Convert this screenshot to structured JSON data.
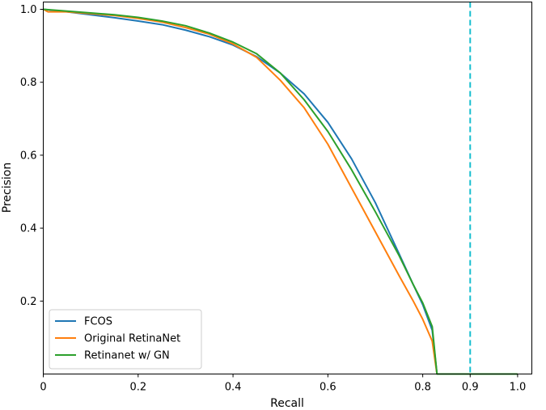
{
  "chart_data": {
    "type": "line",
    "xlabel": "Recall",
    "ylabel": "Precision",
    "xlim": [
      0.0,
      1.03
    ],
    "ylim": [
      0.0,
      1.02
    ],
    "grid": false,
    "legend_position": "bottom-left",
    "x_ticks": [
      {
        "value": 0.0,
        "label": "0"
      },
      {
        "value": 0.2,
        "label": "0.2"
      },
      {
        "value": 0.4,
        "label": "0.4"
      },
      {
        "value": 0.6,
        "label": "0.6"
      },
      {
        "value": 0.8,
        "label": "0.8"
      },
      {
        "value": 0.9,
        "label": "0.9"
      },
      {
        "value": 1.0,
        "label": "1.0"
      }
    ],
    "y_ticks": [
      {
        "value": 0.2,
        "label": "0.2"
      },
      {
        "value": 0.4,
        "label": "0.4"
      },
      {
        "value": 0.6,
        "label": "0.6"
      },
      {
        "value": 0.8,
        "label": "0.8"
      },
      {
        "value": 1.0,
        "label": "1.0"
      }
    ],
    "reference_line": {
      "x": 0.9,
      "color": "#17becf",
      "style": "dashed"
    },
    "series": [
      {
        "name": "FCOS",
        "color": "#1f77b4",
        "x": [
          0,
          0.05,
          0.1,
          0.15,
          0.2,
          0.25,
          0.3,
          0.35,
          0.4,
          0.45,
          0.5,
          0.55,
          0.6,
          0.65,
          0.7,
          0.75,
          0.78,
          0.8,
          0.82,
          0.83,
          0.9,
          1.0
        ],
        "y": [
          1.0,
          0.993,
          0.985,
          0.977,
          0.968,
          0.958,
          0.943,
          0.925,
          0.902,
          0.87,
          0.825,
          0.768,
          0.69,
          0.59,
          0.47,
          0.33,
          0.245,
          0.19,
          0.12,
          0.0,
          0.0,
          0.0
        ]
      },
      {
        "name": "Original RetinaNet",
        "color": "#ff7f0e",
        "x": [
          0,
          0.01,
          0.05,
          0.1,
          0.15,
          0.2,
          0.25,
          0.3,
          0.35,
          0.4,
          0.45,
          0.5,
          0.55,
          0.6,
          0.65,
          0.7,
          0.75,
          0.78,
          0.8,
          0.82,
          0.83,
          0.9,
          1.0
        ],
        "y": [
          1.0,
          0.993,
          0.993,
          0.988,
          0.983,
          0.975,
          0.965,
          0.95,
          0.932,
          0.905,
          0.868,
          0.805,
          0.73,
          0.63,
          0.51,
          0.39,
          0.27,
          0.2,
          0.15,
          0.09,
          0.0,
          0.0,
          0.0
        ]
      },
      {
        "name": "Retinanet w/ GN",
        "color": "#2ca02c",
        "x": [
          0,
          0.05,
          0.1,
          0.15,
          0.2,
          0.25,
          0.3,
          0.35,
          0.4,
          0.45,
          0.5,
          0.55,
          0.6,
          0.65,
          0.7,
          0.75,
          0.78,
          0.8,
          0.82,
          0.83,
          0.9,
          1.0
        ],
        "y": [
          1.0,
          0.995,
          0.99,
          0.985,
          0.978,
          0.968,
          0.955,
          0.935,
          0.91,
          0.878,
          0.825,
          0.752,
          0.665,
          0.56,
          0.445,
          0.325,
          0.245,
          0.195,
          0.13,
          0.0,
          0.0,
          0.0
        ]
      }
    ]
  }
}
